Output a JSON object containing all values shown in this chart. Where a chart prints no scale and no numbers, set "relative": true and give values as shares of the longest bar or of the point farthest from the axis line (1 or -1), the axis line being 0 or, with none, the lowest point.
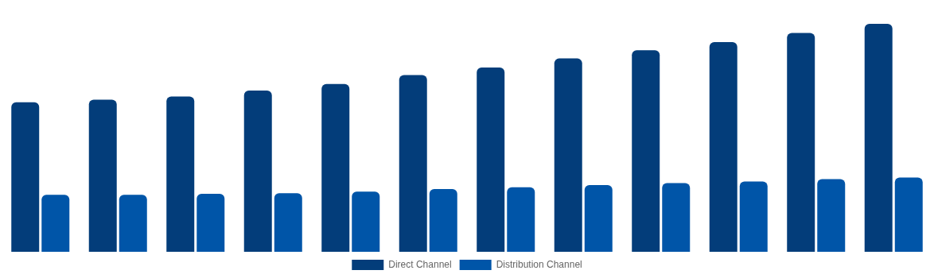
{
  "chart_data": {
    "type": "bar",
    "relative": true,
    "legend": "bottom",
    "categories": [
      null,
      null,
      null,
      null,
      null,
      null,
      null,
      null,
      null,
      null,
      null,
      null
    ],
    "series": [
      {
        "name": "Direct Channel",
        "color": "#033d7a",
        "values": [
          0.656,
          0.667,
          0.681,
          0.707,
          0.736,
          0.775,
          0.808,
          0.848,
          0.884,
          0.92,
          0.96,
          1
        ]
      },
      {
        "name": "Distribution Channel",
        "color": "#0055a8",
        "values": [
          0.25,
          0.25,
          0.254,
          0.257,
          0.264,
          0.275,
          0.283,
          0.293,
          0.301,
          0.308,
          0.319,
          0.326
        ]
      }
    ]
  }
}
